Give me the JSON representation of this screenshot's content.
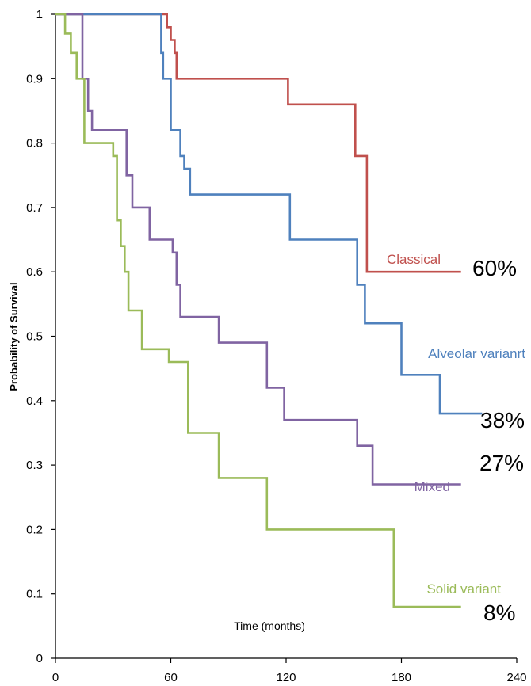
{
  "chart_data": {
    "type": "line",
    "step": true,
    "title": "",
    "xlabel": "Time (months)",
    "ylabel": "Probability of Survival",
    "xlim": [
      0,
      240
    ],
    "ylim": [
      0,
      1
    ],
    "x_ticks": [
      0,
      60,
      120,
      180,
      240
    ],
    "y_ticks": [
      0,
      0.1,
      0.2,
      0.3,
      0.4,
      0.5,
      0.6,
      0.7,
      0.8,
      0.9,
      1
    ],
    "x_tick_labels": [
      "0",
      "60",
      "120",
      "180",
      "240"
    ],
    "y_tick_labels": [
      "0",
      "0.1",
      "0.2",
      "0.3",
      "0.4",
      "0.5",
      "0.6",
      "0.7",
      "0.8",
      "0.9",
      "1"
    ],
    "grid": false,
    "series": [
      {
        "name": "Classical",
        "end_label": "60%",
        "color": "#c0504d",
        "points": [
          [
            0,
            1
          ],
          [
            58,
            1
          ],
          [
            58,
            0.98
          ],
          [
            60,
            0.98
          ],
          [
            60,
            0.96
          ],
          [
            62,
            0.96
          ],
          [
            62,
            0.94
          ],
          [
            63,
            0.94
          ],
          [
            63,
            0.9
          ],
          [
            121,
            0.9
          ],
          [
            121,
            0.86
          ],
          [
            156,
            0.86
          ],
          [
            156,
            0.78
          ],
          [
            162,
            0.78
          ],
          [
            162,
            0.6
          ],
          [
            211,
            0.6
          ]
        ]
      },
      {
        "name": "Alveolar varianrt",
        "end_label": "38%",
        "color": "#4f81bd",
        "points": [
          [
            0,
            1
          ],
          [
            55,
            1
          ],
          [
            55,
            0.94
          ],
          [
            56,
            0.94
          ],
          [
            56,
            0.9
          ],
          [
            60,
            0.9
          ],
          [
            60,
            0.82
          ],
          [
            65,
            0.82
          ],
          [
            65,
            0.78
          ],
          [
            67,
            0.78
          ],
          [
            67,
            0.76
          ],
          [
            70,
            0.76
          ],
          [
            70,
            0.72
          ],
          [
            122,
            0.72
          ],
          [
            122,
            0.65
          ],
          [
            157,
            0.65
          ],
          [
            157,
            0.58
          ],
          [
            161,
            0.58
          ],
          [
            161,
            0.52
          ],
          [
            180,
            0.52
          ],
          [
            180,
            0.44
          ],
          [
            200,
            0.44
          ],
          [
            200,
            0.38
          ],
          [
            222,
            0.38
          ]
        ]
      },
      {
        "name": "Mixed",
        "end_label": "27%",
        "color": "#8064a2",
        "points": [
          [
            0,
            1
          ],
          [
            14,
            1
          ],
          [
            14,
            0.9
          ],
          [
            17,
            0.9
          ],
          [
            17,
            0.85
          ],
          [
            19,
            0.85
          ],
          [
            19,
            0.82
          ],
          [
            37,
            0.82
          ],
          [
            37,
            0.75
          ],
          [
            40,
            0.75
          ],
          [
            40,
            0.7
          ],
          [
            49,
            0.7
          ],
          [
            49,
            0.65
          ],
          [
            61,
            0.65
          ],
          [
            61,
            0.63
          ],
          [
            63,
            0.63
          ],
          [
            63,
            0.58
          ],
          [
            65,
            0.58
          ],
          [
            65,
            0.53
          ],
          [
            85,
            0.53
          ],
          [
            85,
            0.49
          ],
          [
            110,
            0.49
          ],
          [
            110,
            0.42
          ],
          [
            119,
            0.42
          ],
          [
            119,
            0.37
          ],
          [
            157,
            0.37
          ],
          [
            157,
            0.33
          ],
          [
            165,
            0.33
          ],
          [
            165,
            0.27
          ],
          [
            211,
            0.27
          ]
        ]
      },
      {
        "name": "Solid variant",
        "end_label": "8%",
        "color": "#9bbb59",
        "points": [
          [
            0,
            1
          ],
          [
            5,
            1
          ],
          [
            5,
            0.97
          ],
          [
            8,
            0.97
          ],
          [
            8,
            0.94
          ],
          [
            11,
            0.94
          ],
          [
            11,
            0.9
          ],
          [
            15,
            0.9
          ],
          [
            15,
            0.8
          ],
          [
            30,
            0.8
          ],
          [
            30,
            0.78
          ],
          [
            32,
            0.78
          ],
          [
            32,
            0.68
          ],
          [
            34,
            0.68
          ],
          [
            34,
            0.64
          ],
          [
            36,
            0.64
          ],
          [
            36,
            0.6
          ],
          [
            38,
            0.6
          ],
          [
            38,
            0.54
          ],
          [
            45,
            0.54
          ],
          [
            45,
            0.48
          ],
          [
            59,
            0.48
          ],
          [
            59,
            0.46
          ],
          [
            69,
            0.46
          ],
          [
            69,
            0.35
          ],
          [
            85,
            0.35
          ],
          [
            85,
            0.28
          ],
          [
            110,
            0.28
          ],
          [
            110,
            0.2
          ],
          [
            176,
            0.2
          ],
          [
            176,
            0.08
          ],
          [
            211,
            0.08
          ]
        ]
      }
    ]
  }
}
